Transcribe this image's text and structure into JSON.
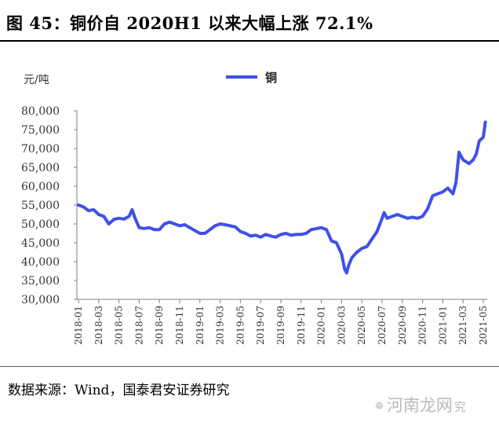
{
  "header": {
    "title": "图 45：铜价自 2020H1 以来大幅上涨 72.1%"
  },
  "footer": {
    "source": "数据来源：Wind，国泰君安证券研究"
  },
  "watermark": {
    "text": "河南龙网",
    "tail": "究"
  },
  "colors": {
    "line": "#3f51e8",
    "axis": "#808080",
    "text": "#333333"
  },
  "chart_data": {
    "type": "line",
    "title": "图 45：铜价自 2020H1 以来大幅上涨 72.1%",
    "ylabel": "元/吨",
    "xlabel": "",
    "ylim": [
      30000,
      80000
    ],
    "yticks": [
      "30,000",
      "35,000",
      "40,000",
      "45,000",
      "50,000",
      "55,000",
      "60,000",
      "65,000",
      "70,000",
      "75,000",
      "80,000"
    ],
    "xticks": [
      "2018-01",
      "2018-03",
      "2018-05",
      "2018-07",
      "2018-09",
      "2018-11",
      "2019-01",
      "2019-03",
      "2019-05",
      "2019-07",
      "2019-09",
      "2019-11",
      "2020-01",
      "2020-03",
      "2020-05",
      "2020-07",
      "2020-09",
      "2020-11",
      "2021-01",
      "2021-03",
      "2021-05"
    ],
    "legend": {
      "position": "top-center",
      "entries": [
        "铜"
      ]
    },
    "grid": false,
    "series": [
      {
        "name": "铜",
        "points": [
          [
            "2018-01",
            55000
          ],
          [
            "2018-01.5",
            54500
          ],
          [
            "2018-02",
            53500
          ],
          [
            "2018-02.5",
            53800
          ],
          [
            "2018-03",
            52500
          ],
          [
            "2018-03.5",
            52000
          ],
          [
            "2018-04",
            50000
          ],
          [
            "2018-04.5",
            51200
          ],
          [
            "2018-05",
            51500
          ],
          [
            "2018-05.5",
            51300
          ],
          [
            "2018-06",
            52000
          ],
          [
            "2018-06.3",
            53800
          ],
          [
            "2018-06.6",
            51500
          ],
          [
            "2018-07",
            49000
          ],
          [
            "2018-07.5",
            48800
          ],
          [
            "2018-08",
            49000
          ],
          [
            "2018-08.5",
            48500
          ],
          [
            "2018-09",
            48500
          ],
          [
            "2018-09.5",
            50000
          ],
          [
            "2018-10",
            50500
          ],
          [
            "2018-10.5",
            50000
          ],
          [
            "2018-11",
            49500
          ],
          [
            "2018-11.5",
            49800
          ],
          [
            "2018-12",
            49000
          ],
          [
            "2019-01",
            47500
          ],
          [
            "2019-01.5",
            47500
          ],
          [
            "2019-02",
            48500
          ],
          [
            "2019-02.5",
            49500
          ],
          [
            "2019-03",
            50000
          ],
          [
            "2019-03.5",
            49800
          ],
          [
            "2019-04",
            49500
          ],
          [
            "2019-04.5",
            49200
          ],
          [
            "2019-05",
            48000
          ],
          [
            "2019-05.5",
            47500
          ],
          [
            "2019-06",
            46800
          ],
          [
            "2019-06.5",
            47000
          ],
          [
            "2019-07",
            46500
          ],
          [
            "2019-07.5",
            47200
          ],
          [
            "2019-08",
            46800
          ],
          [
            "2019-08.5",
            46500
          ],
          [
            "2019-09",
            47200
          ],
          [
            "2019-09.5",
            47500
          ],
          [
            "2019-10",
            47000
          ],
          [
            "2019-10.5",
            47200
          ],
          [
            "2019-11",
            47200
          ],
          [
            "2019-11.5",
            47500
          ],
          [
            "2019-12",
            48500
          ],
          [
            "2020-01",
            49000
          ],
          [
            "2020-01.5",
            48500
          ],
          [
            "2020-02",
            45500
          ],
          [
            "2020-02.5",
            45000
          ],
          [
            "2020-03",
            42000
          ],
          [
            "2020-03.3",
            38000
          ],
          [
            "2020-03.5",
            37000
          ],
          [
            "2020-03.7",
            39000
          ],
          [
            "2020-04",
            41000
          ],
          [
            "2020-04.5",
            42500
          ],
          [
            "2020-05",
            43500
          ],
          [
            "2020-05.5",
            44000
          ],
          [
            "2020-06",
            46000
          ],
          [
            "2020-06.5",
            48000
          ],
          [
            "2020-07",
            51500
          ],
          [
            "2020-07.2",
            53000
          ],
          [
            "2020-07.5",
            51500
          ],
          [
            "2020-08",
            52000
          ],
          [
            "2020-08.5",
            52500
          ],
          [
            "2020-09",
            52000
          ],
          [
            "2020-09.5",
            51500
          ],
          [
            "2020-10",
            51800
          ],
          [
            "2020-10.5",
            51500
          ],
          [
            "2020-11",
            52000
          ],
          [
            "2020-11.5",
            54000
          ],
          [
            "2020-12",
            57500
          ],
          [
            "2020-12.5",
            58000
          ],
          [
            "2021-01",
            58500
          ],
          [
            "2021-01.5",
            59500
          ],
          [
            "2021-02",
            58000
          ],
          [
            "2021-02.3",
            61000
          ],
          [
            "2021-02.6",
            69000
          ],
          [
            "2021-03",
            67000
          ],
          [
            "2021-03.3",
            66500
          ],
          [
            "2021-03.6",
            66000
          ],
          [
            "2021-04",
            67000
          ],
          [
            "2021-04.3",
            68500
          ],
          [
            "2021-04.6",
            72000
          ],
          [
            "2021-05",
            73000
          ],
          [
            "2021-05.2",
            77000
          ]
        ]
      }
    ]
  }
}
